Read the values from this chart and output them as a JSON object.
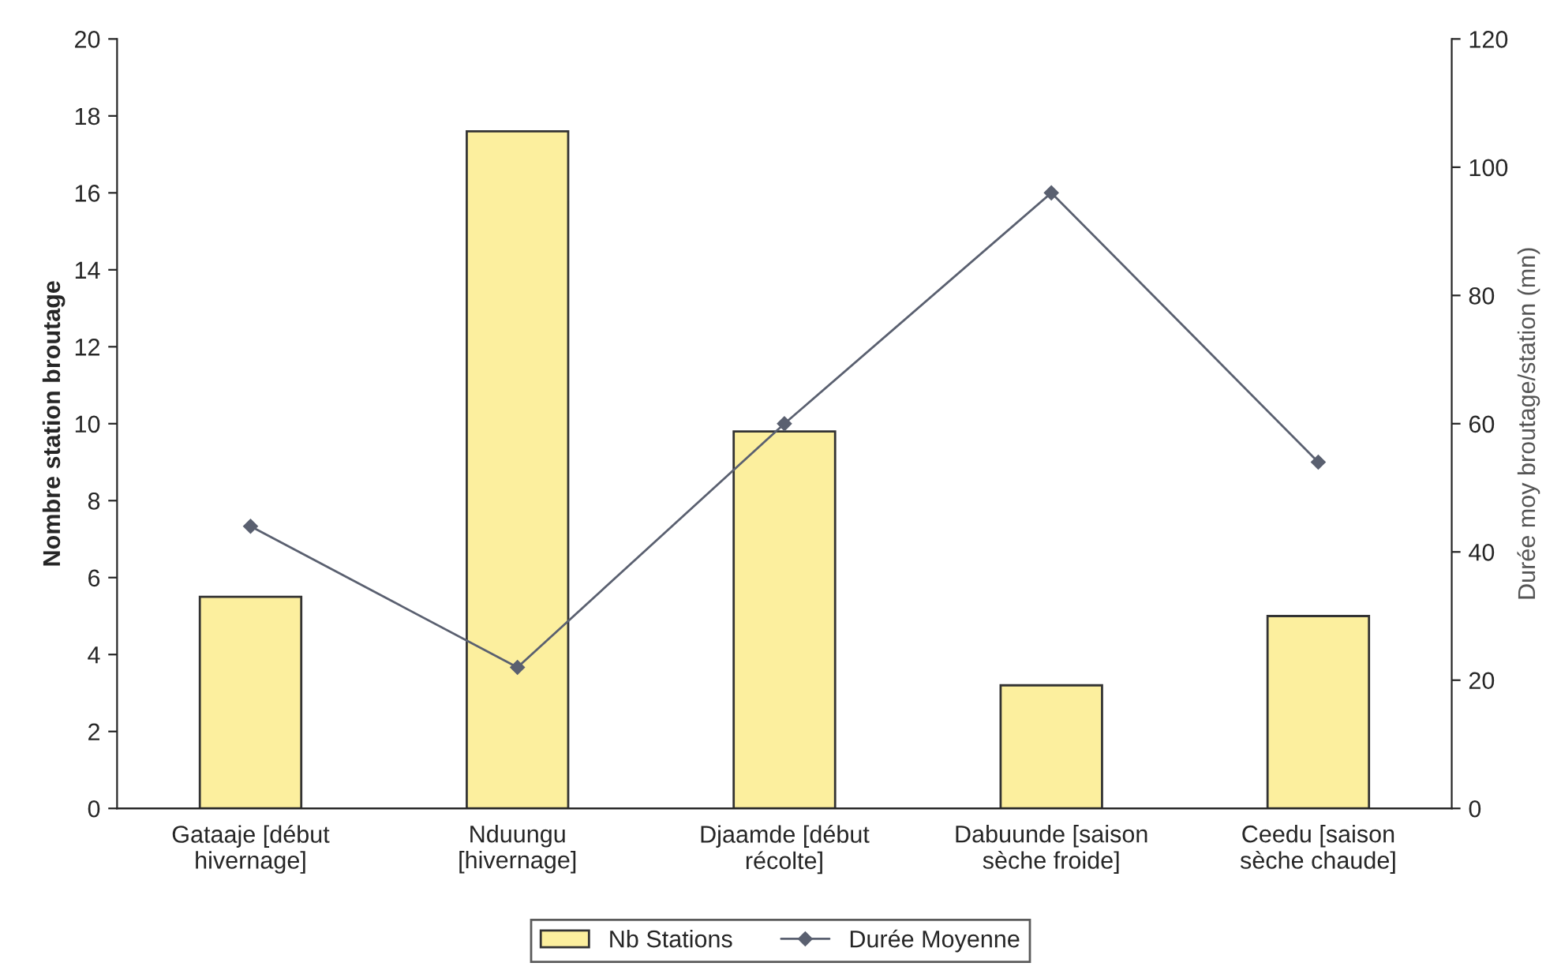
{
  "chart_data": {
    "type": "bar",
    "ylabel": "Nombre station broutage",
    "y2label": "Durée moy broutage/station (mn)",
    "categories": [
      "Gataaje [début\nhivernage]",
      "Nduungu\n[hivernage]",
      "Djaamde [début\nrécolte]",
      "Dabuunde [saison\nsèche froide]",
      "Ceedu [saison\nsèche chaude]"
    ],
    "series": [
      {
        "name": "Nb Stations",
        "color": "#fcef9e",
        "values": [
          5.5,
          17.6,
          9.8,
          3.2,
          5.0
        ]
      },
      {
        "name": "Durée Moyenne",
        "type": "line",
        "axis": "y2",
        "color": "#5a6070",
        "marker": "diamond",
        "values": [
          44,
          22,
          60,
          96,
          54
        ]
      }
    ],
    "ylim": [
      0,
      20
    ],
    "yticks": [
      0,
      2,
      4,
      6,
      8,
      10,
      12,
      14,
      16,
      18,
      20
    ],
    "y2lim": [
      0,
      120
    ],
    "y2ticks": [
      0,
      20,
      40,
      60,
      80,
      100,
      120
    ],
    "grid": false,
    "legend": "bottom"
  }
}
